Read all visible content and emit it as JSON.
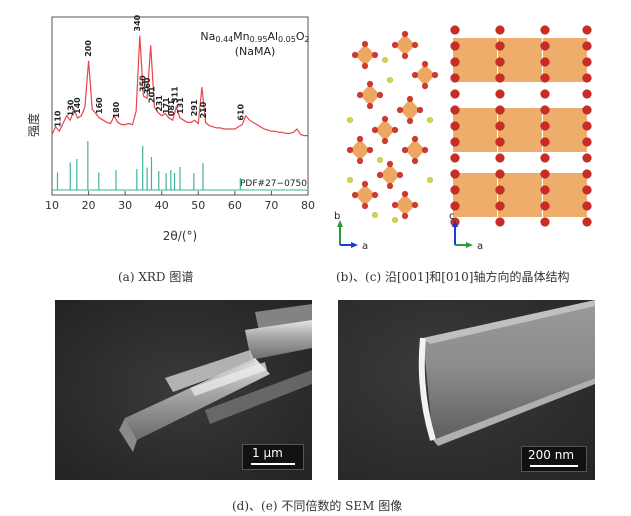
{
  "panel_a": {
    "caption": "(a)  XRD 图谱",
    "formula_line1": "Na0.44Mn0.95Al0.05O2",
    "formula_line2": "(NaMA)",
    "pdf_label": "PDF#27−0750"
  },
  "panel_bc": {
    "caption": "(b)、(c)  沿[001]和[010]轴方向的晶体结构",
    "axis_b": "b",
    "axis_a1": "a",
    "axis_c": "c",
    "axis_a2": "a"
  },
  "panel_de": {
    "caption": "(d)、(e)  不同倍数的 SEM 图像",
    "scale_d": "1 μm",
    "scale_e": "200 nm"
  },
  "chart_data": {
    "type": "line",
    "xlabel": "2θ/(°)",
    "ylabel": "强度",
    "xlim": [
      10,
      80
    ],
    "xticks": [
      10,
      20,
      30,
      40,
      50,
      60,
      70,
      80
    ],
    "series": [
      {
        "name": "",
        "color": "#e8454a",
        "x": [
          10,
          11,
          12,
          13,
          14,
          15,
          16,
          17,
          18,
          19,
          20,
          21,
          22,
          23,
          24,
          25,
          26,
          27,
          28,
          29,
          30,
          31,
          32,
          33,
          34,
          35,
          36,
          37,
          38,
          39,
          40,
          41,
          42,
          43,
          44,
          45,
          46,
          47,
          48,
          49,
          50,
          51,
          52,
          53,
          54,
          55,
          56,
          57,
          58,
          59,
          60,
          61,
          62,
          63,
          64,
          65,
          66,
          67,
          68,
          69,
          70,
          71,
          72,
          73,
          74,
          75,
          76,
          77,
          78,
          79,
          80
        ],
        "y": [
          0.05,
          0.12,
          0.08,
          0.15,
          0.22,
          0.18,
          0.28,
          0.2,
          0.22,
          0.3,
          0.72,
          0.28,
          0.24,
          0.2,
          0.18,
          0.16,
          0.15,
          0.22,
          0.16,
          0.14,
          0.14,
          0.15,
          0.14,
          0.26,
          0.95,
          0.4,
          0.38,
          0.86,
          0.3,
          0.25,
          0.22,
          0.24,
          0.2,
          0.18,
          0.3,
          0.2,
          0.18,
          0.16,
          0.16,
          0.18,
          0.15,
          0.48,
          0.16,
          0.13,
          0.12,
          0.11,
          0.11,
          0.1,
          0.1,
          0.1,
          0.1,
          0.12,
          0.14,
          0.22,
          0.18,
          0.16,
          0.14,
          0.12,
          0.1,
          0.09,
          0.08,
          0.08,
          0.07,
          0.07,
          0.06,
          0.06,
          0.07,
          0.1,
          0.05,
          0.04,
          0.04
        ]
      }
    ],
    "peak_labels": [
      {
        "label": "110",
        "x": 11.5
      },
      {
        "label": "130",
        "x": 15.0
      },
      {
        "label": "140",
        "x": 16.8
      },
      {
        "label": "200",
        "x": 19.8
      },
      {
        "label": "160",
        "x": 22.8
      },
      {
        "label": "180",
        "x": 27.5
      },
      {
        "label": "340",
        "x": 33.2
      },
      {
        "label": "350",
        "x": 34.8
      },
      {
        "label": "360",
        "x": 36.0
      },
      {
        "label": "201",
        "x": 37.2
      },
      {
        "label": "231",
        "x": 39.2
      },
      {
        "label": "171",
        "x": 41.2
      },
      {
        "label": "081",
        "x": 42.5
      },
      {
        "label": "311",
        "x": 43.5
      },
      {
        "label": "131",
        "x": 45.0
      },
      {
        "label": "291",
        "x": 48.8
      },
      {
        "label": "210",
        "x": 51.3
      },
      {
        "label": "610",
        "x": 61.5
      }
    ],
    "reference_lines": {
      "name": "PDF#27−0750",
      "color": "#3fb39a",
      "x": [
        11.5,
        15.0,
        16.8,
        19.8,
        22.8,
        27.5,
        33.2,
        34.8,
        36.0,
        37.2,
        39.2,
        41.2,
        42.5,
        43.5,
        45.0,
        48.8,
        51.3,
        61.5
      ],
      "y": [
        0.35,
        0.55,
        0.62,
        0.98,
        0.35,
        0.4,
        0.42,
        0.88,
        0.45,
        0.66,
        0.38,
        0.34,
        0.4,
        0.34,
        0.46,
        0.34,
        0.54,
        0.24
      ]
    }
  }
}
